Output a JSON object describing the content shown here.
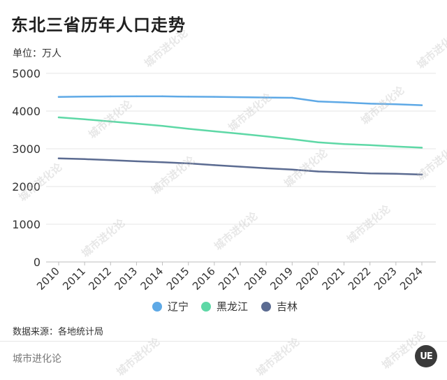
{
  "title": "东北三省历年人口走势",
  "unit_label": "单位：万人",
  "source": "数据来源：各地统计局",
  "brand": "城市进化论",
  "logo_text": "UE",
  "watermark_text": "城市进化论",
  "chart_data": {
    "type": "line",
    "x": [
      "2010",
      "2011",
      "2012",
      "2013",
      "2014",
      "2015",
      "2016",
      "2017",
      "2018",
      "2019",
      "2020",
      "2021",
      "2022",
      "2023",
      "2024"
    ],
    "ylim": [
      0,
      5000
    ],
    "yticks": [
      0,
      1000,
      2000,
      3000,
      4000,
      5000
    ],
    "grid": true,
    "legend_position": "bottom-center",
    "series": [
      {
        "name": "辽宁",
        "color": "#5ea9e6",
        "values": [
          4375,
          4383,
          4389,
          4390,
          4391,
          4382,
          4378,
          4369,
          4359,
          4352,
          4255,
          4229,
          4197,
          4182,
          4155
        ]
      },
      {
        "name": "黑龙江",
        "color": "#5ed8a6",
        "values": [
          3833,
          3782,
          3724,
          3666,
          3608,
          3529,
          3463,
          3399,
          3327,
          3255,
          3171,
          3125,
          3099,
          3062,
          3029
        ]
      },
      {
        "name": "吉林",
        "color": "#5b6b91",
        "values": [
          2747,
          2725,
          2698,
          2668,
          2642,
          2613,
          2567,
          2526,
          2484,
          2448,
          2399,
          2375,
          2348,
          2339,
          2317
        ]
      }
    ]
  }
}
